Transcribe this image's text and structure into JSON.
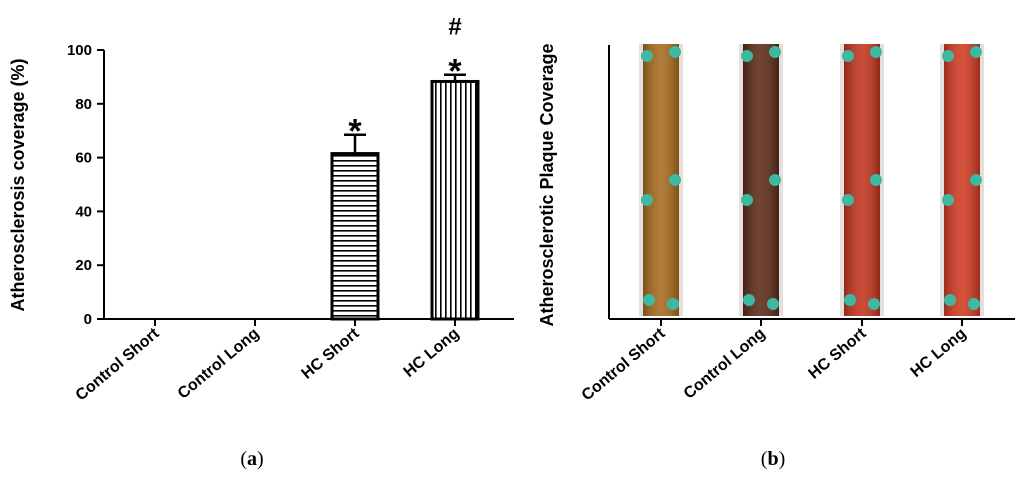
{
  "chart_data": [
    {
      "type": "bar",
      "panel_label": "a",
      "categories": [
        "Control Short",
        "Control Long",
        "HC Short",
        "HC Long"
      ],
      "values": [
        0,
        0,
        61.5,
        88.3
      ],
      "errors": [
        0,
        0,
        7,
        2.5
      ],
      "bar_patterns": [
        "none",
        "none",
        "horizontal-stripes",
        "vertical-stripes"
      ],
      "annotations": [
        {
          "category": "HC Short",
          "text": "*"
        },
        {
          "category": "HC Long",
          "text": "*"
        },
        {
          "category": "HC Long",
          "text": "#"
        }
      ],
      "ylabel": "Atherosclerosis coverage (%)",
      "ylim": [
        0,
        100
      ],
      "yticks": [
        0,
        20,
        40,
        60,
        80,
        100
      ],
      "grid": false,
      "legend": "none"
    },
    {
      "type": "image-panel",
      "panel_label": "b",
      "categories": [
        "Control Short",
        "Control Long",
        "HC Short",
        "HC Long"
      ],
      "ylabel": "Atherosclerotic Plaque Coverage",
      "samples": [
        {
          "category": "Control Short",
          "color": "#a86a1c"
        },
        {
          "category": "Control Long",
          "color": "#5c2a18"
        },
        {
          "category": "HC Short",
          "color": "#c2341c"
        },
        {
          "category": "HC Long",
          "color": "#d03a22"
        }
      ]
    }
  ],
  "labels": {
    "panel_a": "a",
    "panel_b": "b"
  }
}
